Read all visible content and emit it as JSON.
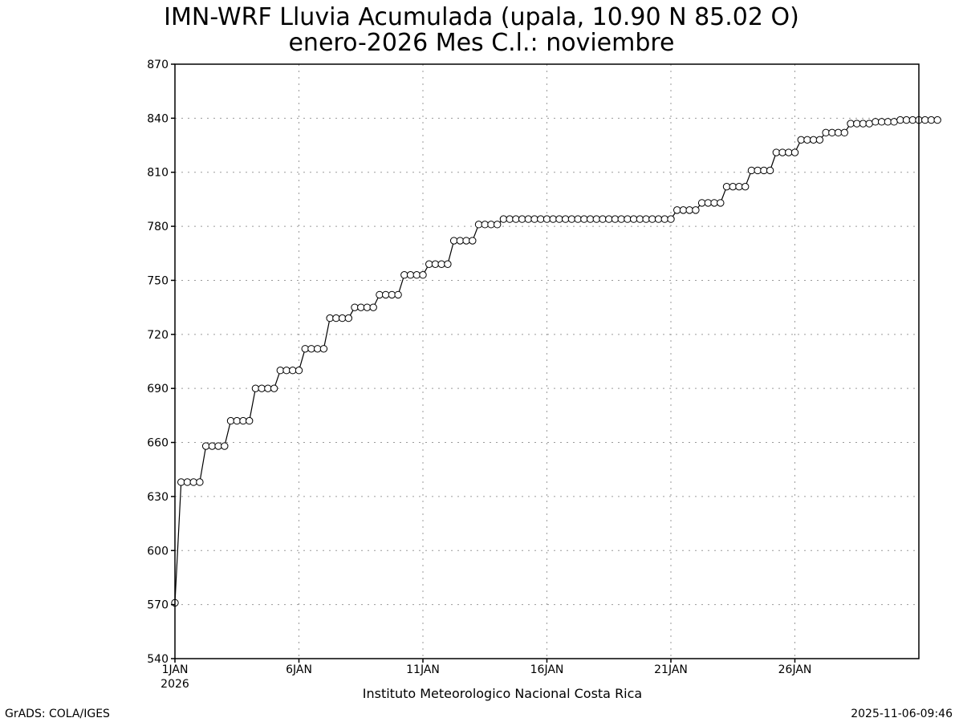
{
  "chart_data": {
    "type": "line",
    "title": "IMN-WRF  Lluvia Acumulada (upala, 10.90  N 85.02  O)",
    "subtitle": "enero-2026 Mes C.l.: noviembre",
    "xlabel": "Instituto Meteorologico Nacional Costa Rica",
    "ylabel": "",
    "ylim": [
      540,
      870
    ],
    "yticks": [
      540,
      570,
      600,
      630,
      660,
      690,
      720,
      750,
      780,
      810,
      840,
      870
    ],
    "xlim": [
      1,
      31
    ],
    "xticks": [
      {
        "day": 1,
        "label": "1JAN",
        "sublabel": "2026"
      },
      {
        "day": 6,
        "label": "6JAN"
      },
      {
        "day": 11,
        "label": "11JAN"
      },
      {
        "day": 16,
        "label": "16JAN"
      },
      {
        "day": 21,
        "label": "21JAN"
      },
      {
        "day": 26,
        "label": "26JAN"
      }
    ],
    "grid": true,
    "marker": "open-circle",
    "line_color": "#000000",
    "series": [
      {
        "name": "",
        "x_start_day": 1,
        "step_days": 0.25,
        "values": [
          571,
          638,
          638,
          638,
          638,
          658,
          658,
          658,
          658,
          672,
          672,
          672,
          672,
          690,
          690,
          690,
          690,
          700,
          700,
          700,
          700,
          712,
          712,
          712,
          712,
          729,
          729,
          729,
          729,
          735,
          735,
          735,
          735,
          742,
          742,
          742,
          742,
          753,
          753,
          753,
          753,
          759,
          759,
          759,
          759,
          772,
          772,
          772,
          772,
          781,
          781,
          781,
          781,
          784,
          784,
          784,
          784,
          784,
          784,
          784,
          784,
          784,
          784,
          784,
          784,
          784,
          784,
          784,
          784,
          784,
          784,
          784,
          784,
          784,
          784,
          784,
          784,
          784,
          784,
          784,
          784,
          789,
          789,
          789,
          789,
          793,
          793,
          793,
          793,
          802,
          802,
          802,
          802,
          811,
          811,
          811,
          811,
          821,
          821,
          821,
          821,
          828,
          828,
          828,
          828,
          832,
          832,
          832,
          832,
          837,
          837,
          837,
          837,
          838,
          838,
          838,
          838,
          839,
          839,
          839,
          839,
          839,
          839,
          839
        ]
      }
    ]
  },
  "footer": {
    "left": "GrADS: COLA/IGES",
    "right": "2025-11-06-09:46"
  }
}
